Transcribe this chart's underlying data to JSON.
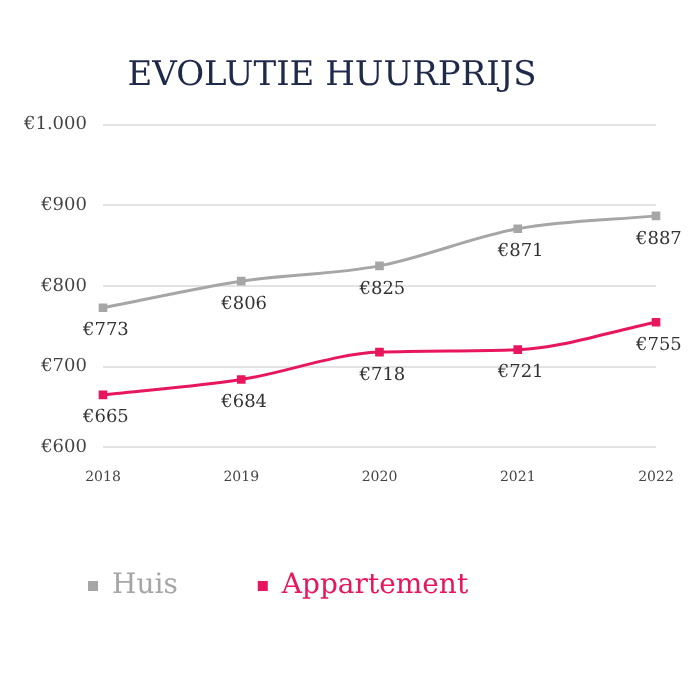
{
  "chart_data": {
    "type": "line",
    "title": "EVOLUTIE HUURPRIJS",
    "categories": [
      "2018",
      "2019",
      "2020",
      "2021",
      "2022"
    ],
    "series": [
      {
        "name": "Huis",
        "color": "#a6a6a6",
        "values": [
          773,
          806,
          825,
          871,
          887
        ],
        "value_labels": [
          "€773",
          "€806",
          "€825",
          "€871",
          "€887"
        ]
      },
      {
        "name": "Appartement",
        "color": "#e8175d",
        "values": [
          665,
          684,
          718,
          721,
          755
        ],
        "value_labels": [
          "€665",
          "€684",
          "€718",
          "€721",
          "€755"
        ]
      }
    ],
    "ylim": [
      600,
      1000
    ],
    "yticks": [
      {
        "value": 600,
        "label": "€600"
      },
      {
        "value": 700,
        "label": "€700"
      },
      {
        "value": 800,
        "label": "€800"
      },
      {
        "value": 900,
        "label": "€900"
      },
      {
        "value": 1000,
        "label": "€1.000"
      }
    ],
    "grid": "y",
    "legend": "bottom left",
    "marker": "square",
    "line_style": "solid"
  }
}
